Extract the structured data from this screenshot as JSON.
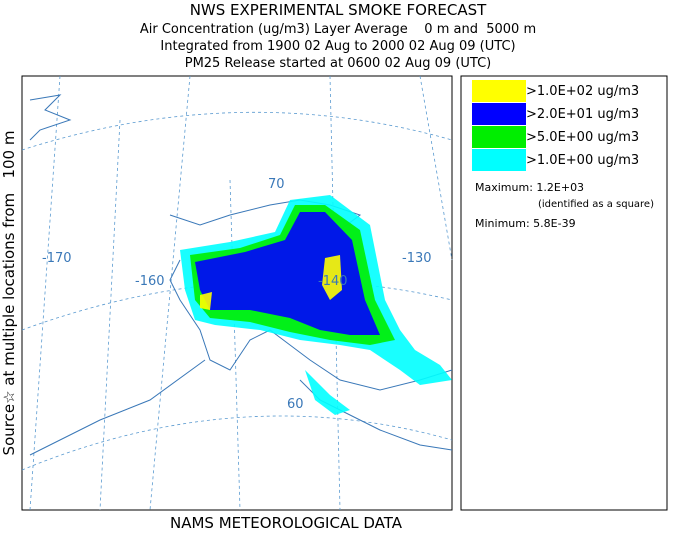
{
  "header": {
    "title": "NWS EXPERIMENTAL SMOKE FORECAST",
    "lines": [
      "Air Concentration (ug/m3) Layer Average    0 m and  5000 m",
      "Integrated from 1900 02 Aug to 2000 02 Aug 09 (UTC)",
      "PM25 Release started at 0600 02 Aug 09 (UTC)"
    ]
  },
  "side_label": "Source☆ at multiple locations from   100 m",
  "footer": "NAMS METEOROLOGICAL DATA",
  "map": {
    "graticule_labels": [
      "-170",
      "-160",
      "-140",
      "-130",
      "70",
      "60"
    ]
  },
  "legend": {
    "items": [
      {
        "label": ">1.0E+02 ug/m3",
        "color": "#ffff00"
      },
      {
        "label": ">2.0E+01 ug/m3",
        "color": "#0000ff"
      },
      {
        "label": ">5.0E+00 ug/m3",
        "color": "#00ee00"
      },
      {
        "label": ">1.0E+00 ug/m3",
        "color": "#00ffff"
      }
    ],
    "maximum": "Maximum: 1.2E+03",
    "maximum_note": "(identified as a square)",
    "minimum": "Minimum: 5.8E-39"
  }
}
